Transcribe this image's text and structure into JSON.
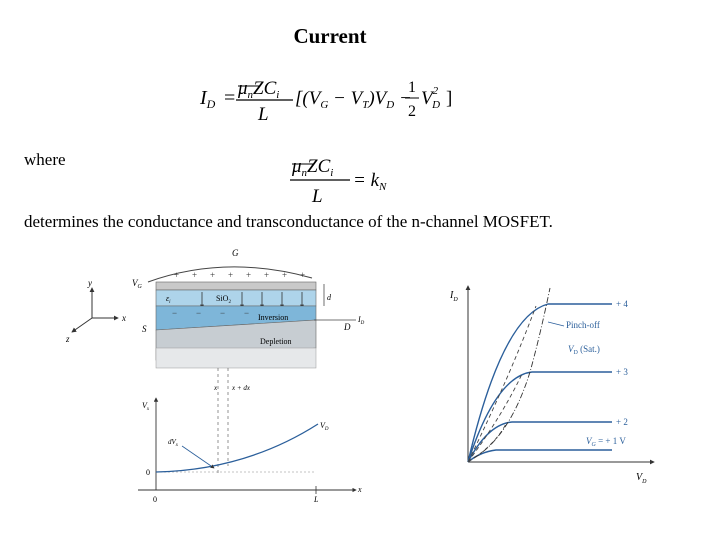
{
  "title": "Current",
  "equation_main": {
    "lhs_symbol": "I",
    "lhs_sub": "D",
    "equals": "=",
    "numer_mu": "μ",
    "numer_mu_sub": "n",
    "numer_rest": "ZC",
    "numer_rest_sub": "i",
    "denom": "L",
    "bracket_part": "[(V",
    "vg_sub": "G",
    "minus1": " − V",
    "vt_sub": "T",
    "vd_part": ")V",
    "vd_sub": "D",
    "minus2": " −",
    "half_num": "1",
    "half_den": "2",
    "vd2": "V",
    "vd2_sup": "2",
    "vd2_sub": "D",
    "close": "]"
  },
  "where_label": "where",
  "equation_kn": {
    "numer_mu": "μ",
    "numer_mu_sub": "n",
    "numer_rest": "ZC",
    "numer_rest_sub": "i",
    "denom": "L",
    "equals": "= k",
    "rhs_sub": "N"
  },
  "description": "determines the conductance and transconductance of the n-channel MOSFET.",
  "figure_left": {
    "gate_label": "G",
    "vg_label": "V",
    "vg_sub": "G",
    "ei_label": "ε",
    "ei_sub": "i",
    "oxide_label": "SiO",
    "oxide_sub": "2",
    "d_label": "d",
    "s_label": "S",
    "drain_label": "D",
    "id_label": "I",
    "id_sub": "D",
    "inversion_label": "Inversion",
    "depletion_label": "Depletion",
    "axis_y": "y",
    "axis_x": "x",
    "axis_z": "z",
    "x_mark": "x",
    "xdx_mark": "x + dx",
    "vx_label": "V",
    "vx_sub": "x",
    "dvx_label": "dV",
    "dvx_sub": "x",
    "vd_curve_label": "V",
    "vd_curve_sub": "D",
    "origin_v": "0",
    "origin_h": "0",
    "l_label": "L",
    "x_axis_label": "x",
    "plus_signs": [
      "+",
      "+",
      "+",
      "+",
      "+",
      "+",
      "+",
      "+",
      "+"
    ],
    "minus_signs": [
      "−",
      "−",
      "−",
      "−"
    ]
  },
  "figure_right": {
    "y_axis_label": "I",
    "y_axis_sub": "D",
    "x_axis_label": "V",
    "x_axis_sub": "D",
    "curve_labels": [
      "+ 4",
      "+ 3",
      "+ 2",
      "V",
      "+ 1 V"
    ],
    "vg_label_sub": "G",
    "vg_label_eq": " = ",
    "pinch_label_1": "Pinch-off",
    "pinch_label_2": "V",
    "pinch_label_2_sub": "D",
    "pinch_label_2_tail": " (Sat.)"
  },
  "colors": {
    "curve_blue": "#2b5f9b",
    "oxide_blue": "#aed4ea",
    "inversion_blue": "#7eb6d9",
    "depletion_gray": "#c7cdd2",
    "gate_gray": "#c9c9c9"
  }
}
